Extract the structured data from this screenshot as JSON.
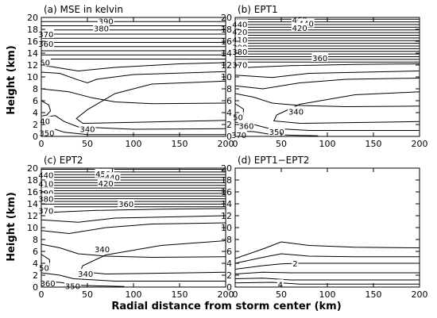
{
  "figure": {
    "xlabel": "Radial distance from storm center (km)",
    "ylabel": "Height (km)"
  },
  "chart_data": [
    {
      "type": "contour",
      "title": "(a) MSE in kelvin",
      "x_ticks": [
        "0",
        "50",
        "100",
        "150",
        "200"
      ],
      "y_ticks": [
        "0",
        "2",
        "4",
        "6",
        "8",
        "10",
        "12",
        "14",
        "16",
        "18",
        "20"
      ],
      "xlim": [
        0,
        200
      ],
      "ylim": [
        0,
        20
      ],
      "contour_labels": [
        {
          "text": "390",
          "x": 70,
          "y": 19.4
        },
        {
          "text": "380",
          "x": 65,
          "y": 18.2
        },
        {
          "text": "370",
          "x": 5,
          "y": 17.2
        },
        {
          "text": "360",
          "x": 5,
          "y": 15.6
        },
        {
          "text": "50",
          "x": 4,
          "y": 12.5
        },
        {
          "text": "40",
          "x": 4,
          "y": 2.6
        },
        {
          "text": "350",
          "x": 6,
          "y": 0.6
        },
        {
          "text": "340",
          "x": 50,
          "y": 1.3
        }
      ]
    },
    {
      "type": "contour",
      "title": "(b) EPT1",
      "x_ticks": [
        "0",
        "50",
        "100",
        "150",
        "200"
      ],
      "y_ticks": [
        "0",
        "2",
        "4",
        "6",
        "8",
        "10",
        "12",
        "14",
        "16",
        "18",
        "20"
      ],
      "xlim": [
        0,
        200
      ],
      "ylim": [
        0,
        20
      ],
      "contour_labels": [
        {
          "text": "460",
          "x": 70,
          "y": 19.6
        },
        {
          "text": "440",
          "x": 77,
          "y": 19.0
        },
        {
          "text": "420",
          "x": 70,
          "y": 18.3
        },
        {
          "text": "440",
          "x": 5,
          "y": 18.9
        },
        {
          "text": "420",
          "x": 5,
          "y": 17.6
        },
        {
          "text": "410",
          "x": 5,
          "y": 16.3
        },
        {
          "text": "390",
          "x": 5,
          "y": 15.0
        },
        {
          "text": "380",
          "x": 5,
          "y": 14.3
        },
        {
          "text": "370",
          "x": 5,
          "y": 12.1
        },
        {
          "text": "360",
          "x": 92,
          "y": 13.2
        },
        {
          "text": "340",
          "x": 66,
          "y": 4.2
        },
        {
          "text": "50",
          "x": 3,
          "y": 3.3
        },
        {
          "text": "360",
          "x": 12,
          "y": 1.8
        },
        {
          "text": "350",
          "x": 45,
          "y": 0.8
        },
        {
          "text": "370",
          "x": 4,
          "y": 0.3
        }
      ]
    },
    {
      "type": "contour",
      "title": "(c) EPT2",
      "x_ticks": [
        "0",
        "50",
        "100",
        "150",
        "200"
      ],
      "y_ticks": [
        "0",
        "2",
        "4",
        "6",
        "8",
        "10",
        "12",
        "14",
        "16",
        "18",
        "20"
      ],
      "xlim": [
        0,
        200
      ],
      "ylim": [
        0,
        20
      ],
      "contour_labels": [
        {
          "text": "460",
          "x": 70,
          "y": 19.7
        },
        {
          "text": "450",
          "x": 67,
          "y": 19.1
        },
        {
          "text": "440",
          "x": 77,
          "y": 18.5
        },
        {
          "text": "420",
          "x": 70,
          "y": 17.5
        },
        {
          "text": "440",
          "x": 5,
          "y": 18.9
        },
        {
          "text": "410",
          "x": 5,
          "y": 17.4
        },
        {
          "text": "390",
          "x": 5,
          "y": 15.9
        },
        {
          "text": "380",
          "x": 5,
          "y": 14.9
        },
        {
          "text": "370",
          "x": 5,
          "y": 12.9
        },
        {
          "text": "360",
          "x": 92,
          "y": 14.0
        },
        {
          "text": "340",
          "x": 66,
          "y": 6.4
        },
        {
          "text": "340",
          "x": 48,
          "y": 2.3
        },
        {
          "text": "50",
          "x": 3,
          "y": 3.3
        },
        {
          "text": "360",
          "x": 7,
          "y": 0.7
        },
        {
          "text": "350",
          "x": 34,
          "y": 0.2
        }
      ]
    },
    {
      "type": "contour",
      "title": "(d) EPT1−EPT2",
      "x_ticks": [
        "0",
        "50",
        "100",
        "150",
        "200"
      ],
      "y_ticks": [
        "0",
        "2",
        "4",
        "6",
        "8",
        "10",
        "12",
        "14",
        "16",
        "18",
        "20"
      ],
      "xlim": [
        0,
        200
      ],
      "ylim": [
        0,
        20
      ],
      "contour_labels": [
        {
          "text": "2",
          "x": 65,
          "y": 4.0
        },
        {
          "text": "4",
          "x": 49,
          "y": 0.5
        }
      ]
    }
  ]
}
